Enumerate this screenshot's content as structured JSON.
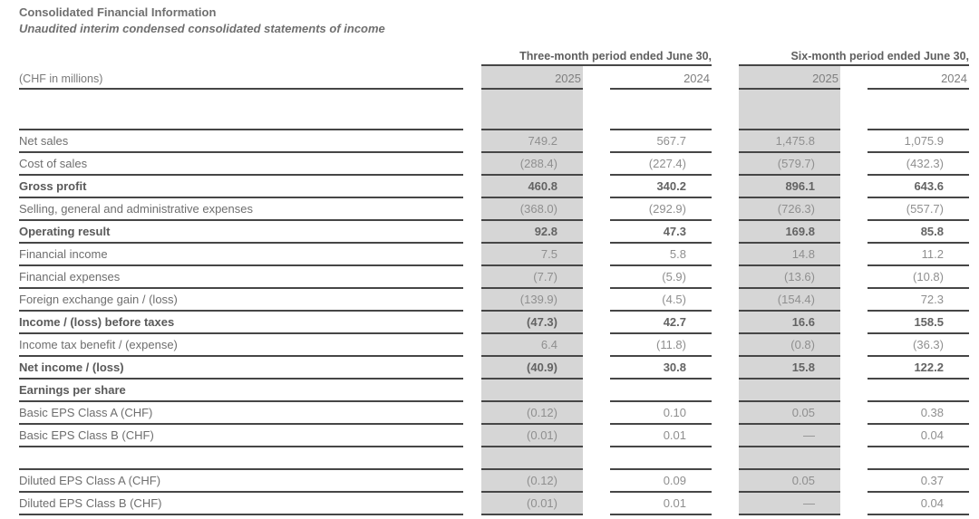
{
  "title": "Consolidated Financial Information",
  "subtitle": "Unaudited interim condensed consolidated statements of income",
  "table": {
    "unit_label": "(CHF in millions)",
    "groups": [
      {
        "label": "Three-month period ended June 30,",
        "years": [
          "2025",
          "2024"
        ]
      },
      {
        "label": "Six-month period ended June 30,",
        "years": [
          "2025",
          "2024"
        ]
      }
    ],
    "shaded_column_indexes": [
      0,
      2
    ],
    "rows": [
      {
        "type": "spacer_tall",
        "bold": false,
        "label": "",
        "values": [
          "",
          "",
          "",
          ""
        ]
      },
      {
        "type": "data",
        "bold": false,
        "label": "Net sales",
        "values": [
          "749.2",
          "567.7",
          "1,475.8",
          "1,075.9"
        ]
      },
      {
        "type": "data",
        "bold": false,
        "label": "Cost of sales",
        "values": [
          "(288.4)",
          "(227.4)",
          "(579.7)",
          "(432.3)"
        ]
      },
      {
        "type": "data",
        "bold": true,
        "label": "Gross profit",
        "values": [
          "460.8",
          "340.2",
          "896.1",
          "643.6"
        ]
      },
      {
        "type": "data",
        "bold": false,
        "label": "Selling, general and administrative expenses",
        "values": [
          "(368.0)",
          "(292.9)",
          "(726.3)",
          "(557.7)"
        ]
      },
      {
        "type": "data",
        "bold": true,
        "label": "Operating result",
        "values": [
          "92.8",
          "47.3",
          "169.8",
          "85.8"
        ]
      },
      {
        "type": "data",
        "bold": false,
        "label": "Financial income",
        "values": [
          "7.5",
          "5.8",
          "14.8",
          "11.2"
        ]
      },
      {
        "type": "data",
        "bold": false,
        "label": "Financial expenses",
        "values": [
          "(7.7)",
          "(5.9)",
          "(13.6)",
          "(10.8)"
        ]
      },
      {
        "type": "data",
        "bold": false,
        "label": "Foreign exchange gain / (loss)",
        "values": [
          "(139.9)",
          "(4.5)",
          "(154.4)",
          "72.3"
        ]
      },
      {
        "type": "data",
        "bold": true,
        "label": "Income / (loss) before taxes",
        "values": [
          "(47.3)",
          "42.7",
          "16.6",
          "158.5"
        ]
      },
      {
        "type": "data",
        "bold": false,
        "label": "Income tax benefit / (expense)",
        "values": [
          "6.4",
          "(11.8)",
          "(0.8)",
          "(36.3)"
        ]
      },
      {
        "type": "data",
        "bold": true,
        "label": "Net income / (loss)",
        "values": [
          "(40.9)",
          "30.8",
          "15.8",
          "122.2"
        ]
      },
      {
        "type": "data",
        "bold": true,
        "label": "Earnings per share",
        "values": [
          "",
          "",
          "",
          ""
        ]
      },
      {
        "type": "data",
        "bold": false,
        "label": "Basic EPS Class A (CHF)",
        "values": [
          "(0.12)",
          "0.10",
          "0.05",
          "0.38"
        ]
      },
      {
        "type": "data",
        "bold": false,
        "label": "Basic EPS Class B (CHF)",
        "values": [
          "(0.01)",
          "0.01",
          "—",
          "0.04"
        ]
      },
      {
        "type": "spacer",
        "bold": false,
        "label": "",
        "values": [
          "",
          "",
          "",
          ""
        ]
      },
      {
        "type": "data",
        "bold": false,
        "label": "Diluted EPS Class A (CHF)",
        "values": [
          "(0.12)",
          "0.09",
          "0.05",
          "0.37"
        ]
      },
      {
        "type": "data",
        "bold": false,
        "label": "Diluted EPS Class B (CHF)",
        "values": [
          "(0.01)",
          "0.01",
          "—",
          "0.04"
        ]
      }
    ]
  },
  "colors": {
    "column_shading": "#d6d6d6",
    "rule_line": "#464646",
    "label_text": "#6e6e6e",
    "bold_label_text": "#595959",
    "value_text": "#8f8f8f",
    "title_text": "#6f6f6f"
  }
}
